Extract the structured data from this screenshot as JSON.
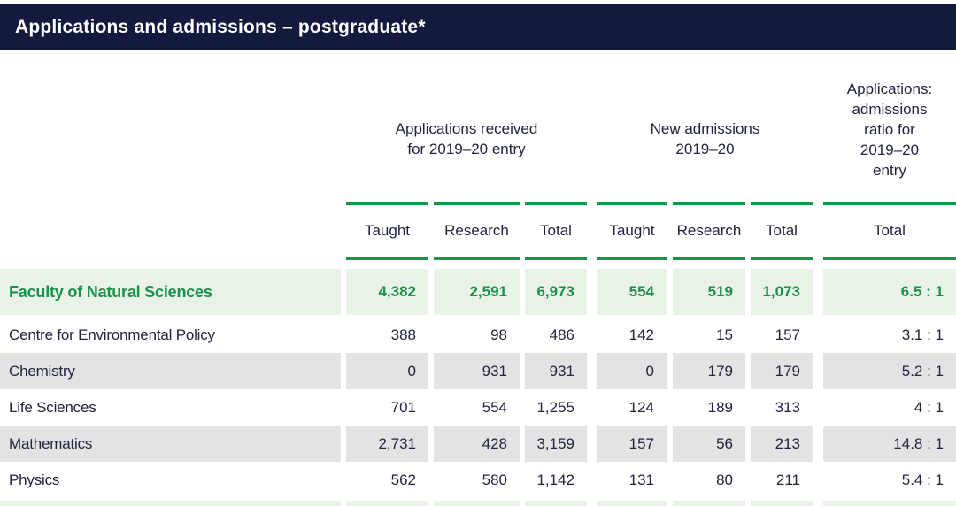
{
  "header": {
    "title": "Applications and admissions – postgraduate*"
  },
  "column_groups": [
    {
      "label": "Applications received for 2019–20 entry"
    },
    {
      "label": "New admissions 2019–20"
    },
    {
      "label": "Applications: admissions ratio for 2019–20 entry"
    }
  ],
  "sub_headers": [
    "Taught",
    "Research",
    "Total",
    "Taught",
    "Research",
    "Total",
    "Total"
  ],
  "rows": [
    {
      "label": "Faculty of Natural Sciences",
      "highlight": true,
      "values": [
        "4,382",
        "2,591",
        "6,973",
        "554",
        "519",
        "1,073",
        "6.5 : 1"
      ]
    },
    {
      "label": "Centre for Environmental Policy",
      "highlight": false,
      "values": [
        "388",
        "98",
        "486",
        "142",
        "15",
        "157",
        "3.1 : 1"
      ]
    },
    {
      "label": "Chemistry",
      "highlight": false,
      "values": [
        "0",
        "931",
        "931",
        "0",
        "179",
        "179",
        "5.2 : 1"
      ]
    },
    {
      "label": "Life Sciences",
      "highlight": false,
      "values": [
        "701",
        "554",
        "1,255",
        "124",
        "189",
        "313",
        "4 : 1"
      ]
    },
    {
      "label": "Mathematics",
      "highlight": false,
      "values": [
        "2,731",
        "428",
        "3,159",
        "157",
        "56",
        "213",
        "14.8 : 1"
      ]
    },
    {
      "label": "Physics",
      "highlight": false,
      "values": [
        "562",
        "580",
        "1,142",
        "131",
        "80",
        "211",
        "5.4 : 1"
      ]
    }
  ],
  "colors": {
    "header_bar": "#141a3d",
    "accent_green": "#169647",
    "green_text": "#199148",
    "highlight_row_bg": "#e9f2e6",
    "alt_row_bg": "#e3e3e3",
    "body_text": "#20243f"
  }
}
